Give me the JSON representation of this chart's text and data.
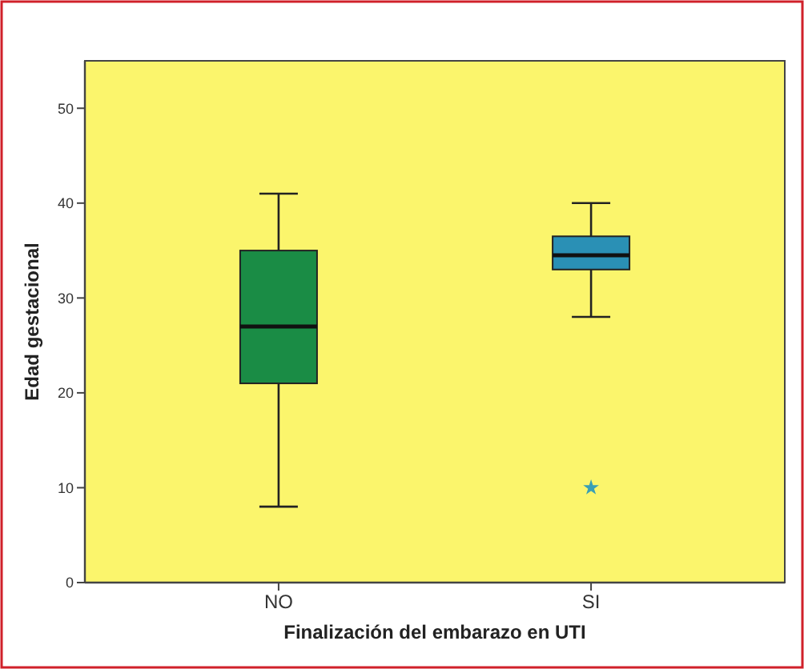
{
  "chart_data": {
    "type": "box",
    "xlabel": "Finalización del embarazo en UTI",
    "ylabel": "Edad gestacional",
    "categories": [
      "NO",
      "SI"
    ],
    "colors": [
      "#1a8c45",
      "#2a90b5"
    ],
    "boxes": [
      {
        "low": 8,
        "q1": 21,
        "median": 27,
        "q3": 35,
        "high": 41
      },
      {
        "low": 28,
        "q1": 33,
        "median": 34.5,
        "q3": 36.5,
        "high": 40,
        "outliers": [
          10
        ]
      }
    ],
    "ylim": [
      0,
      55
    ],
    "yticks": [
      0,
      10,
      20,
      30,
      40,
      50
    ],
    "grid": false,
    "marker": "star"
  }
}
